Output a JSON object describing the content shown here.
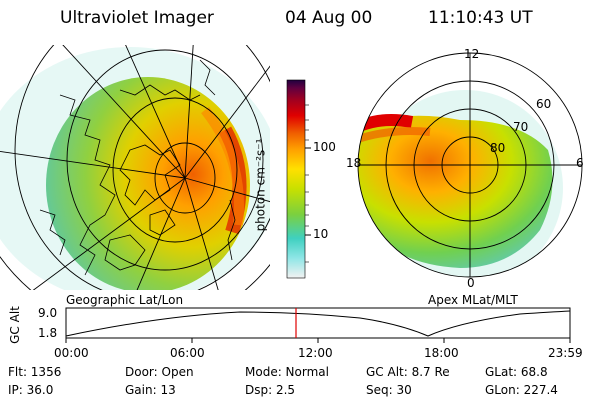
{
  "header": {
    "title": "Ultraviolet Imager",
    "date": "04 Aug 00",
    "time": "11:10:43 UT"
  },
  "colorbar": {
    "unit_label": "photon cm⁻²s⁻¹",
    "tick_labels": [
      "100",
      "10"
    ],
    "colors": [
      "#f2f2f2",
      "#8fe6e6",
      "#3fd0c0",
      "#7ad040",
      "#c8e000",
      "#ffe000",
      "#ffa000",
      "#f06000",
      "#e00000",
      "#a00020",
      "#600040",
      "#200040"
    ]
  },
  "left_panel": {
    "label": "Geographic Lat/Lon"
  },
  "right_panel": {
    "label": "Apex MLat/MLT",
    "mlt_labels": [
      "12",
      "18",
      "6",
      "0"
    ],
    "lat_labels": [
      "60",
      "70",
      "80"
    ]
  },
  "altitude_plot": {
    "ylabel": "GC Alt",
    "y_ticks": [
      "9.0",
      "1.8"
    ],
    "x_ticks": [
      "00:00",
      "06:00",
      "12:00",
      "18:00",
      "23:59"
    ],
    "current_time_marker_color": "#e00000"
  },
  "info": {
    "flt": "Flt:  1356",
    "ip": "IP:  36.0",
    "door": "Door:  Open",
    "gain": "Gain:  13",
    "mode": "Mode:  Normal",
    "dsp": "Dsp:       2.5",
    "gc_alt": "GC Alt:  8.7 Re",
    "seq": "Seq:  30",
    "glat": "GLat:       68.8",
    "glon": "GLon:  227.4"
  }
}
